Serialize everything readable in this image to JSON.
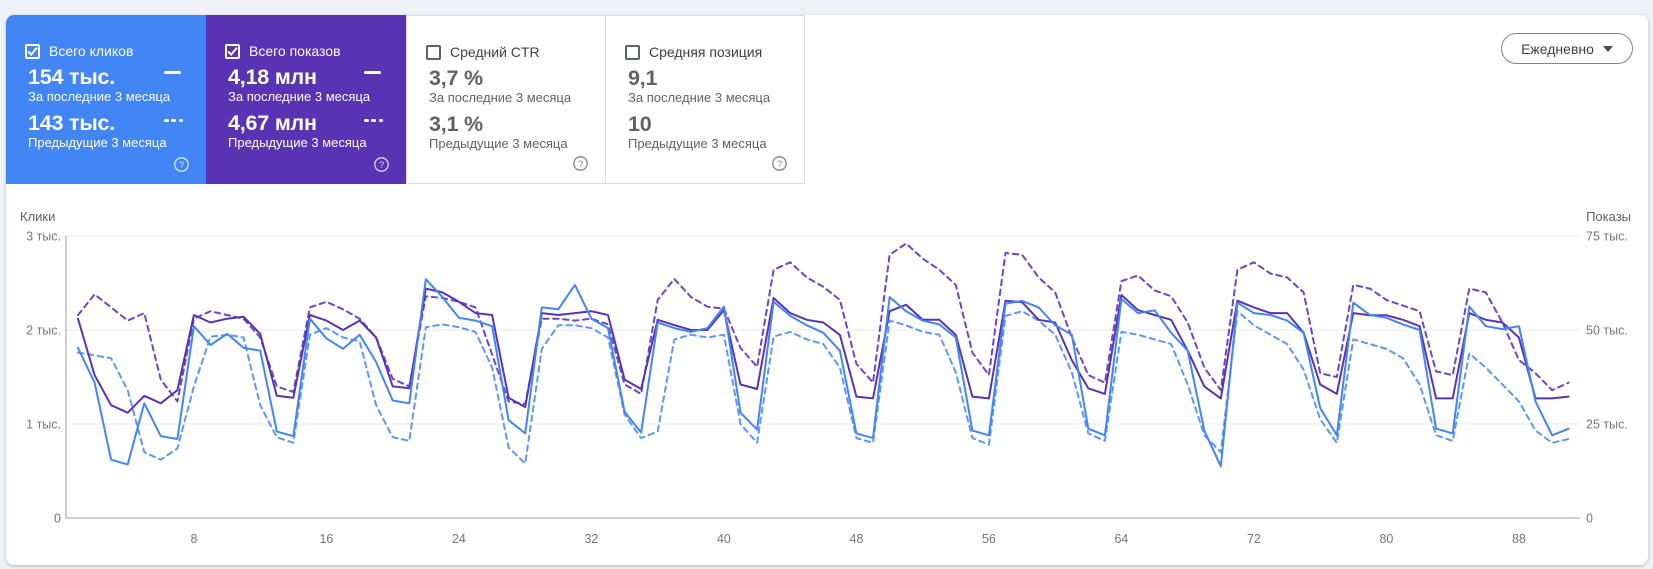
{
  "toolbar": {
    "granularity_label": "Ежедневно"
  },
  "cards": [
    {
      "label": "Всего кликов",
      "checked": true,
      "accent": "#4285f4",
      "value_current": "154 тыс.",
      "period_current": "За последние 3 месяца",
      "value_previous": "143 тыс.",
      "period_previous": "Предыдущие 3 месяца"
    },
    {
      "label": "Всего показов",
      "checked": true,
      "accent": "#5a33b4",
      "value_current": "4,18 млн",
      "period_current": "За последние 3 месяца",
      "value_previous": "4,67 млн",
      "period_previous": "Предыдущие 3 месяца"
    },
    {
      "label": "Средний CTR",
      "checked": false,
      "accent": "",
      "value_current": "3,7 %",
      "period_current": "За последние 3 месяца",
      "value_previous": "3,1 %",
      "period_previous": "Предыдущие 3 месяца"
    },
    {
      "label": "Средняя позиция",
      "checked": false,
      "accent": "",
      "value_current": "9,1",
      "period_current": "За последние 3 месяца",
      "value_previous": "10",
      "period_previous": "Предыдущие 3 месяца"
    }
  ],
  "chart_data": {
    "type": "line",
    "x_label_unit": "day index",
    "x_ticks": [
      {
        "label": "8",
        "day": 8
      },
      {
        "label": "16",
        "day": 16
      },
      {
        "label": "24",
        "day": 24
      },
      {
        "label": "32",
        "day": 32
      },
      {
        "label": "40",
        "day": 40
      },
      {
        "label": "48",
        "day": 48
      },
      {
        "label": "56",
        "day": 56
      },
      {
        "label": "64",
        "day": 64
      },
      {
        "label": "72",
        "day": 72
      },
      {
        "label": "80",
        "day": 80
      },
      {
        "label": "88",
        "day": 88
      }
    ],
    "left_axis": {
      "title": "Клики",
      "max": 3,
      "ticks": [
        {
          "label": "3 тыс.",
          "value": 3
        },
        {
          "label": "2 тыс.",
          "value": 2
        },
        {
          "label": "1 тыс.",
          "value": 1
        },
        {
          "label": "0",
          "value": 0
        }
      ]
    },
    "right_axis": {
      "title": "Показы",
      "max": 75,
      "ticks": [
        {
          "label": "75 тыс.",
          "value": 75
        },
        {
          "label": "50 тыс.",
          "value": 50
        },
        {
          "label": "25 тыс.",
          "value": 25
        },
        {
          "label": "0",
          "value": 0
        }
      ]
    },
    "series": [
      {
        "name": "Показы — предыдущие 3 месяца",
        "axis": "right",
        "style": "dashed",
        "color": "#6e45c6",
        "unit": "тыс.",
        "values": [
          54,
          59.5,
          56,
          52.5,
          54.5,
          36.8,
          31,
          53,
          55,
          54,
          53,
          48,
          35,
          33.5,
          56,
          57.5,
          55.5,
          53,
          48,
          37,
          35,
          59,
          58.5,
          57.5,
          56,
          43.5,
          31,
          30.3,
          53,
          53,
          52.5,
          53,
          51.5,
          35.5,
          33,
          58,
          63.6,
          58.8,
          56.2,
          55.7,
          45.2,
          40.2,
          66,
          68,
          64,
          61.5,
          58,
          41,
          36,
          70,
          73,
          69,
          66,
          62,
          44,
          38,
          70.5,
          70,
          64,
          60,
          48,
          38,
          36,
          63,
          64.5,
          60.5,
          59,
          52,
          40,
          34,
          66,
          68,
          65,
          64,
          60,
          38.5,
          37.5,
          62,
          61,
          58,
          56.5,
          55,
          39,
          38,
          61,
          60,
          52,
          42,
          38.5,
          34,
          36
        ]
      },
      {
        "name": "Клики — предыдущие 3 месяца",
        "axis": "left",
        "style": "dashed",
        "color": "#5e97f6",
        "unit": "тыс.",
        "values": [
          1.76,
          1.73,
          1.7,
          1.36,
          0.7,
          0.62,
          0.74,
          1.4,
          1.93,
          1.95,
          1.92,
          1.2,
          0.86,
          0.8,
          1.95,
          2.02,
          1.92,
          1.88,
          1.2,
          0.86,
          0.82,
          2.03,
          2.06,
          2.03,
          1.98,
          1.6,
          0.75,
          0.58,
          1.8,
          2.05,
          2.05,
          2.02,
          1.92,
          1.1,
          0.85,
          0.92,
          1.9,
          1.95,
          1.92,
          1.95,
          1.0,
          0.8,
          1.93,
          1.98,
          1.9,
          1.85,
          1.6,
          0.85,
          0.8,
          2.1,
          2.05,
          1.98,
          1.95,
          1.55,
          0.85,
          0.78,
          2.15,
          2.2,
          2.1,
          1.95,
          1.55,
          0.9,
          0.82,
          1.98,
          1.95,
          1.9,
          1.85,
          1.42,
          0.88,
          0.7,
          2.2,
          2.05,
          1.95,
          1.85,
          1.58,
          1.05,
          0.8,
          1.9,
          1.85,
          1.8,
          1.7,
          1.42,
          0.88,
          0.82,
          1.75,
          1.6,
          1.42,
          1.24,
          0.93,
          0.8,
          0.84
        ]
      },
      {
        "name": "Показы — за последние 3 месяца",
        "axis": "right",
        "style": "solid",
        "color": "#5a33b4",
        "unit": "тыс.",
        "values": [
          53,
          38,
          30,
          28,
          32.5,
          30.5,
          34,
          54,
          52,
          53,
          53.5,
          49,
          32.5,
          32,
          54,
          52.5,
          50,
          52.5,
          48,
          35,
          34.5,
          61,
          60,
          57.5,
          54.5,
          54,
          32,
          29.5,
          54.5,
          54,
          54.5,
          55,
          54,
          36.8,
          34.3,
          52.7,
          51.3,
          50,
          50,
          55.3,
          35.5,
          34.3,
          58.5,
          54.5,
          52.7,
          52,
          48.7,
          32.3,
          31.8,
          55,
          56.7,
          52.7,
          52.7,
          48.7,
          32.3,
          31.8,
          57.8,
          57.4,
          52.7,
          52,
          42,
          34.5,
          33,
          59.3,
          55.3,
          54,
          52.7,
          44.5,
          35,
          31.8,
          57.8,
          56,
          54.5,
          54.5,
          49.3,
          35.5,
          33,
          54.5,
          53.9,
          53.9,
          52.7,
          51,
          31.8,
          31.8,
          54.5,
          52.7,
          52,
          48,
          31.8,
          31.8,
          32.3
        ]
      },
      {
        "name": "Клики — за последние 3 месяца",
        "axis": "left",
        "style": "solid",
        "color": "#4285f4",
        "unit": "тыс.",
        "values": [
          1.81,
          1.44,
          0.62,
          0.57,
          1.22,
          0.87,
          0.84,
          2.04,
          1.84,
          1.96,
          1.81,
          1.78,
          0.92,
          0.87,
          2.12,
          1.91,
          1.8,
          1.95,
          1.66,
          1.25,
          1.22,
          2.54,
          2.35,
          2.13,
          2.1,
          2.04,
          1.04,
          0.9,
          2.24,
          2.22,
          2.48,
          2.12,
          2.02,
          1.13,
          0.91,
          2.08,
          2.02,
          1.98,
          2.02,
          2.25,
          1.12,
          0.94,
          2.3,
          2.15,
          2.05,
          1.97,
          1.78,
          0.9,
          0.85,
          2.35,
          2.2,
          2.1,
          2.06,
          1.92,
          0.93,
          0.88,
          2.28,
          2.31,
          2.24,
          2.05,
          1.95,
          0.95,
          0.88,
          2.33,
          2.18,
          2.21,
          1.97,
          1.78,
          0.93,
          0.55,
          2.29,
          2.18,
          2.16,
          2.1,
          1.97,
          1.17,
          0.88,
          2.29,
          2.16,
          2.13,
          2.06,
          2.0,
          0.95,
          0.9,
          2.25,
          2.04,
          2.01,
          2.04,
          1.24,
          0.88,
          0.95
        ]
      }
    ]
  }
}
